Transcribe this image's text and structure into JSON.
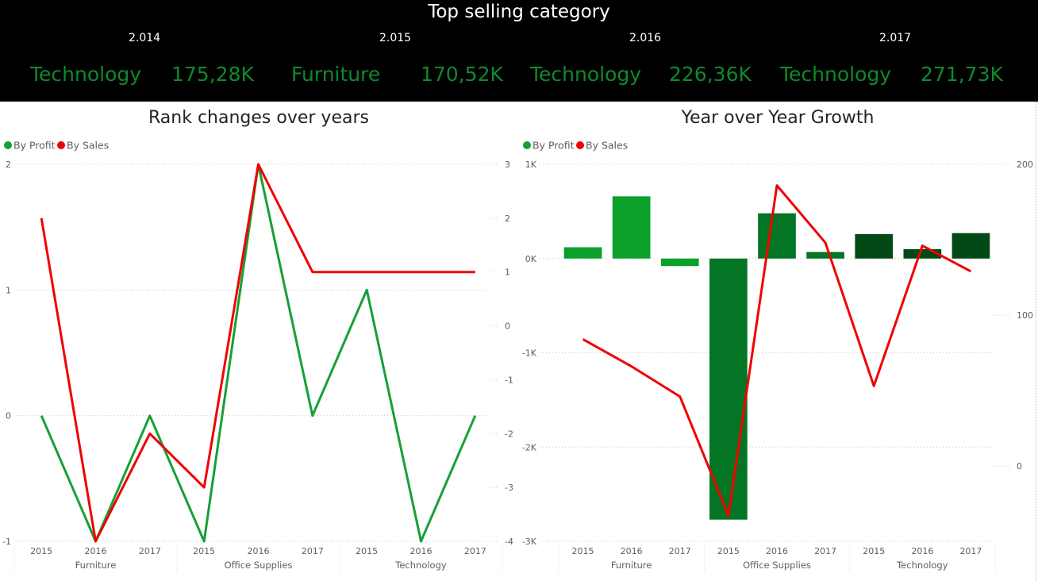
{
  "banner": {
    "title": "Top selling category",
    "items": [
      {
        "year": "2.014",
        "category": "Technology",
        "value": "175,28K"
      },
      {
        "year": "2.015",
        "category": "Furniture",
        "value": "170,52K"
      },
      {
        "year": "2.016",
        "category": "Technology",
        "value": "226,36K"
      },
      {
        "year": "2.017",
        "category": "Technology",
        "value": "271,73K"
      }
    ]
  },
  "colors": {
    "banner_bg": "#000000",
    "kpi_green": "#0e8a2c",
    "profit_green": "#15a035",
    "sales_red": "#f00000",
    "bar_furniture": "#0aa02a",
    "bar_office": "#047524",
    "bar_technology": "#024a15"
  },
  "chart_data": [
    {
      "type": "line",
      "title": "Rank changes over years",
      "legend": [
        "By Profit",
        "By Sales"
      ],
      "legend_position": "top-left",
      "grid": true,
      "x": [
        "2015",
        "2016",
        "2017",
        "2015",
        "2016",
        "2017",
        "2015",
        "2016",
        "2017"
      ],
      "groups": [
        {
          "label": "Furniture",
          "count": 3
        },
        {
          "label": "Office Supplies",
          "count": 3
        },
        {
          "label": "Technology",
          "count": 3
        }
      ],
      "y_left": {
        "ticks": [
          "2",
          "1",
          "0",
          "-1"
        ],
        "range": [
          -1,
          2
        ]
      },
      "y_right": {
        "ticks": [
          "3",
          "2",
          "1",
          "0",
          "-1",
          "-2",
          "-3",
          "-4"
        ],
        "range": [
          -4,
          3
        ]
      },
      "series": [
        {
          "name": "By Profit",
          "axis": "left",
          "values": [
            0,
            -1,
            0,
            -1,
            2,
            0,
            1,
            -1,
            0
          ]
        },
        {
          "name": "By Sales",
          "axis": "right",
          "values": [
            2,
            -4,
            -2,
            -3,
            3,
            1,
            1,
            1,
            1
          ]
        }
      ]
    },
    {
      "type": "bar",
      "title": "Year over Year Growth",
      "legend": [
        "By Profit",
        "By Sales"
      ],
      "legend_position": "top-left",
      "grid": true,
      "x": [
        "2015",
        "2016",
        "2017",
        "2015",
        "2016",
        "2017",
        "2015",
        "2016",
        "2017"
      ],
      "groups": [
        {
          "label": "Furniture",
          "count": 3
        },
        {
          "label": "Office Supplies",
          "count": 3
        },
        {
          "label": "Technology",
          "count": 3
        }
      ],
      "y_left": {
        "ticks": [
          "1K",
          "0K",
          "-1K",
          "-2K",
          "-3K"
        ],
        "range": [
          -3000,
          1000
        ]
      },
      "y_right": {
        "ticks": [
          "200",
          "100",
          "0"
        ],
        "range": [
          -50,
          200
        ]
      },
      "series": [
        {
          "name": "By Profit",
          "axis": "left",
          "kind": "bar",
          "values": [
            120,
            660,
            -80,
            -2770,
            480,
            70,
            260,
            100,
            270
          ]
        },
        {
          "name": "By Sales",
          "axis": "right",
          "kind": "line",
          "values": [
            84,
            66,
            46,
            -33,
            186,
            148,
            53,
            146,
            129
          ]
        }
      ]
    }
  ]
}
